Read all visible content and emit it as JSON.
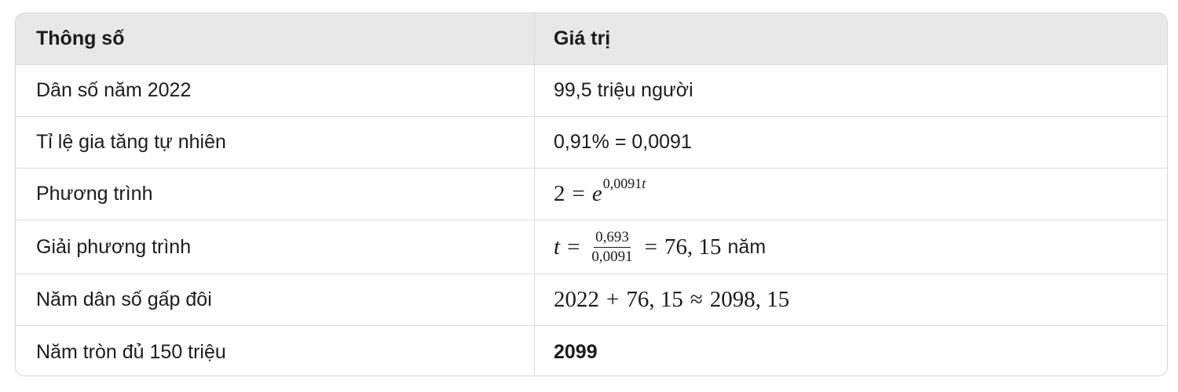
{
  "header": {
    "col1": "Thông số",
    "col2": "Giá trị"
  },
  "rows": [
    {
      "label": "Dân số năm 2022",
      "value": "99,5 triệu người"
    },
    {
      "label": "Tỉ lệ gia tăng tự nhiên",
      "value": "0,91% = 0,0091"
    },
    {
      "label": "Phương trình",
      "math": {
        "lhs": "2",
        "eq": "=",
        "base": "e",
        "exp_num": "0,0091",
        "exp_var": "t"
      }
    },
    {
      "label": "Giải phương trình",
      "math": {
        "var": "t",
        "eq": "=",
        "numerator": "0,693",
        "denominator": "0,0091",
        "eq2": "=",
        "result": "76, 15",
        "unit": "năm"
      }
    },
    {
      "label": "Năm dân số gấp đôi",
      "math": {
        "a": "2022",
        "plus": "+",
        "b": "76, 15",
        "approx": "≈",
        "result": "2098, 15"
      }
    },
    {
      "label": "Năm tròn đủ 150 triệu",
      "value": "2099"
    }
  ]
}
